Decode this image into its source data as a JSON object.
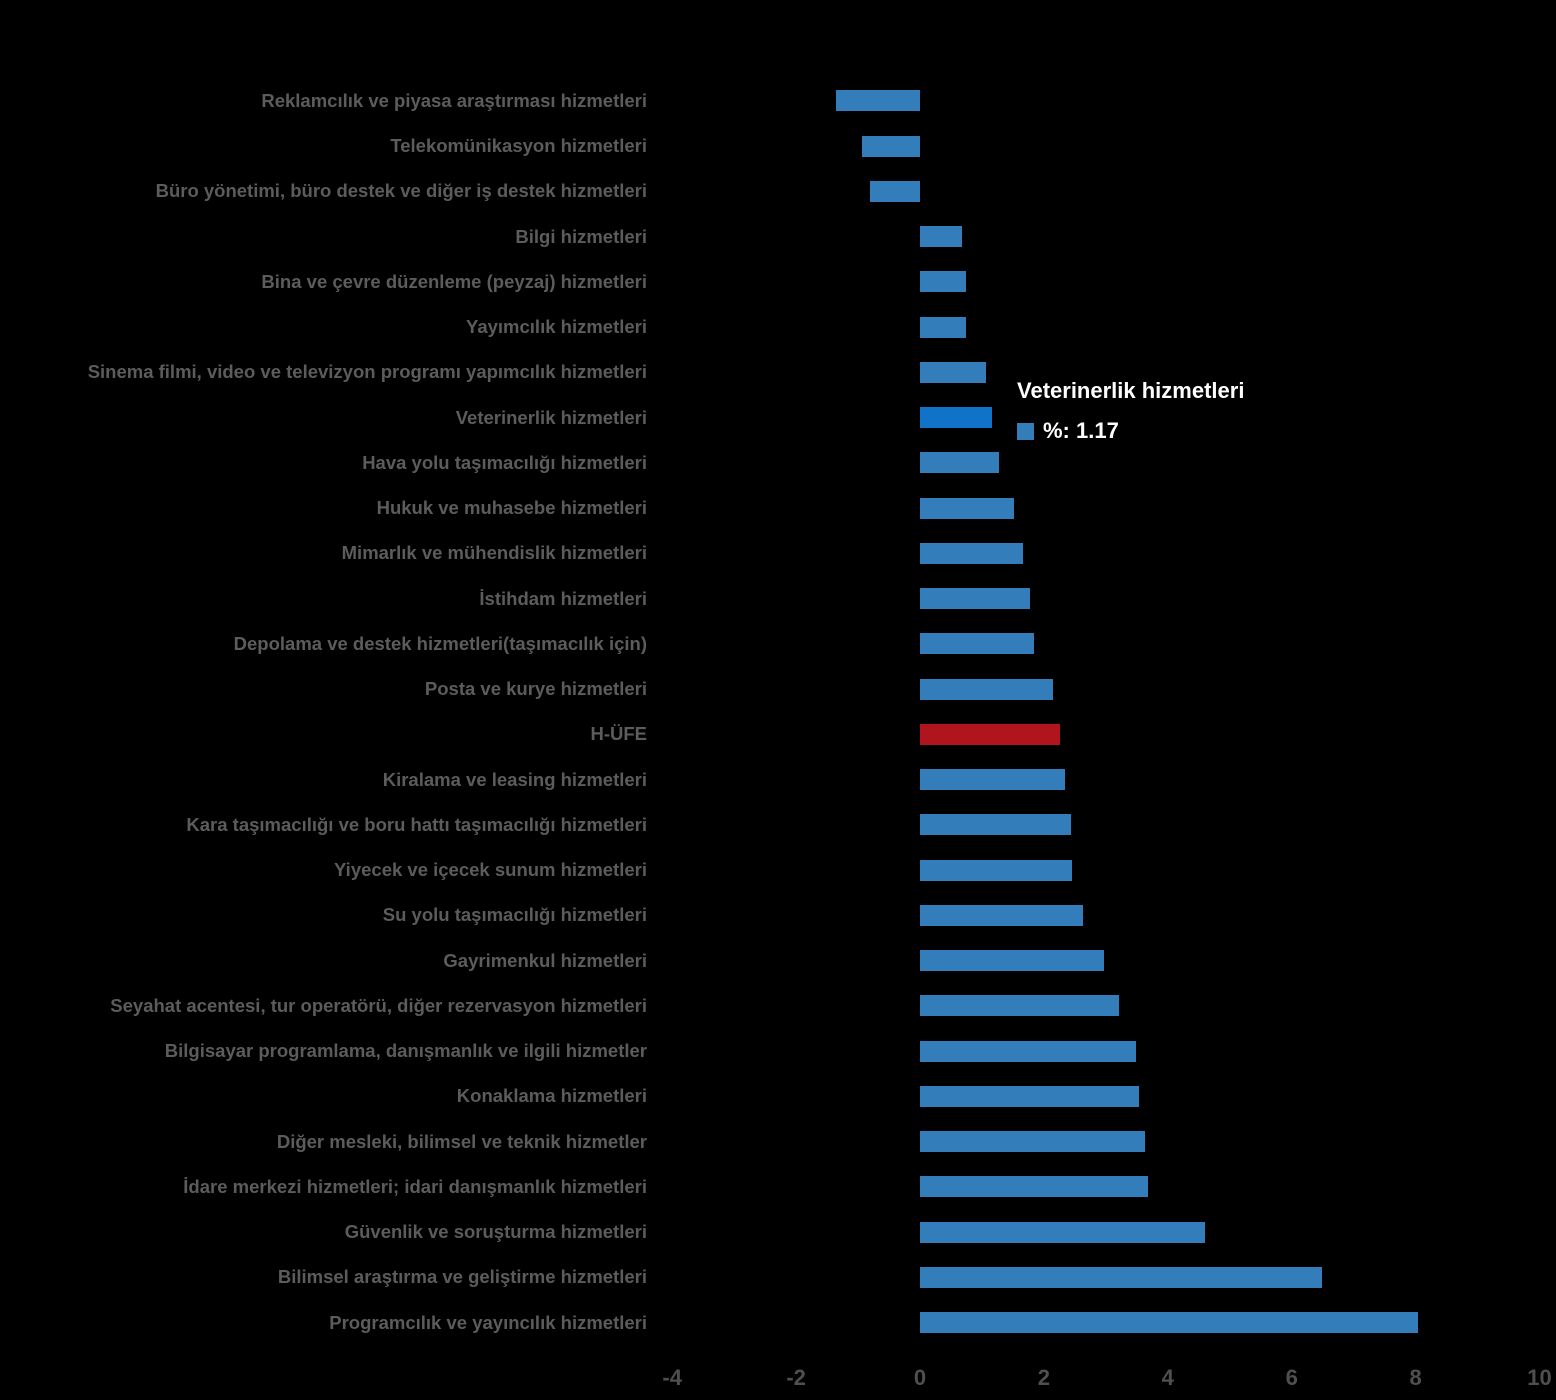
{
  "colors": {
    "background": "#000000",
    "bar_blue": "#337dba",
    "bar_blue_hover": "#1173c8",
    "bar_red": "#b0141c",
    "label_gray": "#5c5c5c",
    "tick_gray": "#4f4f4f",
    "tooltip_text": "#ffffff"
  },
  "tooltip": {
    "title": "Veterinerlik hizmetleri",
    "value_label": "%: 1.17"
  },
  "chart_data": {
    "type": "bar",
    "orientation": "horizontal",
    "title": "",
    "xlabel": "",
    "ylabel": "",
    "grid": false,
    "legend_position": "none",
    "series_name": "%",
    "x_ticks": [
      -4,
      -2,
      0,
      2,
      4,
      6,
      8,
      10
    ],
    "xlim": [
      -4.35,
      10.27
    ],
    "highlighted_category": "Veterinerlik hizmetleri",
    "emphasis_category": "H-ÜFE",
    "categories": [
      "Reklamcılık ve piyasa araştırması hizmetleri",
      "Telekomünikasyon hizmetleri",
      "Büro yönetimi, büro destek ve diğer iş destek hizmetleri",
      "Bilgi hizmetleri",
      "Bina ve çevre düzenleme (peyzaj) hizmetleri",
      "Yayımcılık hizmetleri",
      "Sinema filmi, video ve televizyon programı yapımcılık hizmetleri",
      "Veterinerlik hizmetleri",
      "Hava yolu taşımacılığı hizmetleri",
      "Hukuk ve muhasebe hizmetleri",
      "Mimarlık ve mühendislik hizmetleri",
      "İstihdam hizmetleri",
      "Depolama ve destek hizmetleri(taşımacılık için)",
      "Posta ve kurye hizmetleri",
      "H-ÜFE",
      "Kiralama ve leasing hizmetleri",
      "Kara taşımacılığı ve boru hattı taşımacılığı hizmetleri",
      "Yiyecek ve içecek sunum hizmetleri",
      "Su yolu taşımacılığı hizmetleri",
      "Gayrimenkul hizmetleri",
      "Seyahat acentesi, tur operatörü, diğer rezervasyon hizmetleri",
      "Bilgisayar programlama, danışmanlık ve ilgili hizmetler",
      "Konaklama hizmetleri",
      "Diğer mesleki, bilimsel ve teknik hizmetler",
      "İdare merkezi hizmetleri; idari danışmanlık hizmetleri",
      "Güvenlik ve soruşturma hizmetleri",
      "Bilimsel araştırma ve geliştirme hizmetleri",
      "Programcılık ve yayıncılık hizmetleri"
    ],
    "values": [
      -1.35,
      -0.94,
      -0.81,
      0.67,
      0.74,
      0.75,
      1.06,
      1.17,
      1.28,
      1.51,
      1.66,
      1.78,
      1.84,
      2.14,
      2.26,
      2.34,
      2.43,
      2.46,
      2.63,
      2.97,
      3.22,
      3.49,
      3.54,
      3.63,
      3.68,
      4.6,
      6.49,
      8.04
    ]
  }
}
